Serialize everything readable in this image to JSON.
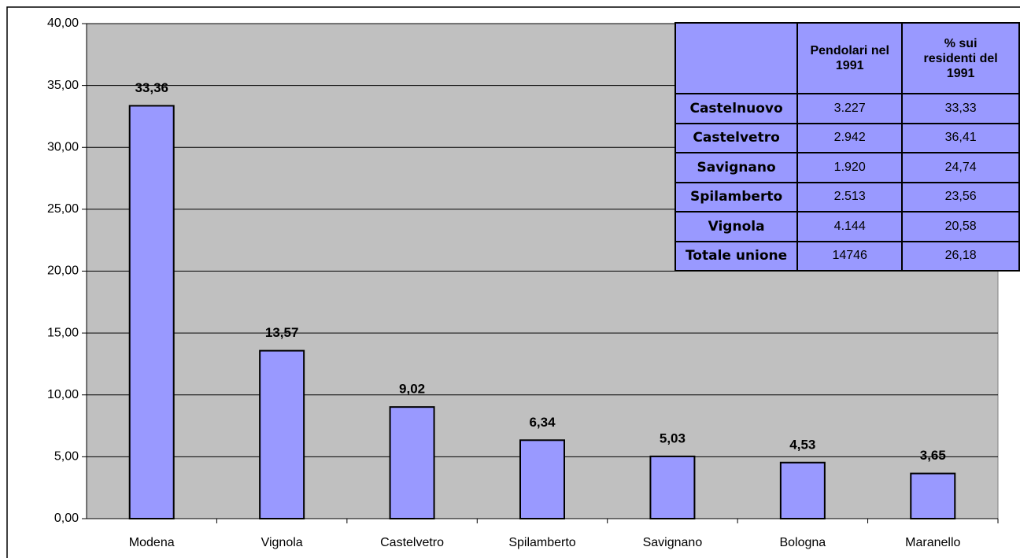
{
  "chart_data": {
    "type": "bar",
    "categories": [
      "Modena",
      "Vignola",
      "Castelvetro",
      "Spilamberto",
      "Savignano",
      "Bologna",
      "Maranello"
    ],
    "values": [
      33.36,
      13.57,
      9.02,
      6.34,
      5.03,
      4.53,
      3.65
    ],
    "value_labels": [
      "33,36",
      "13,57",
      "9,02",
      "6,34",
      "5,03",
      "4,53",
      "3,65"
    ],
    "color": "#9999ff",
    "ylim": [
      0,
      40
    ],
    "yticks": [
      {
        "value": 0,
        "label": "0,00"
      },
      {
        "value": 5,
        "label": "5,00"
      },
      {
        "value": 10,
        "label": "10,00"
      },
      {
        "value": 15,
        "label": "15,00"
      },
      {
        "value": 20,
        "label": "20,00"
      },
      {
        "value": 25,
        "label": "25,00"
      },
      {
        "value": 30,
        "label": "30,00"
      },
      {
        "value": 35,
        "label": "35,00"
      },
      {
        "value": 40,
        "label": "40,00"
      }
    ],
    "grid": true,
    "table": {
      "columns": [
        "Pendolari nel 1991",
        "% sui residenti del 1991"
      ],
      "rows": [
        {
          "label": "Castelnuovo",
          "cells": [
            "3.227",
            "33,33"
          ]
        },
        {
          "label": "Castelvetro",
          "cells": [
            "2.942",
            "36,41"
          ]
        },
        {
          "label": "Savignano",
          "cells": [
            "1.920",
            "24,74"
          ]
        },
        {
          "label": "Spilamberto",
          "cells": [
            "2.513",
            "23,56"
          ]
        },
        {
          "label": "Vignola",
          "cells": [
            "4.144",
            "20,58"
          ]
        },
        {
          "label": "Totale unione",
          "cells": [
            "14746",
            "26,18"
          ]
        }
      ]
    }
  }
}
